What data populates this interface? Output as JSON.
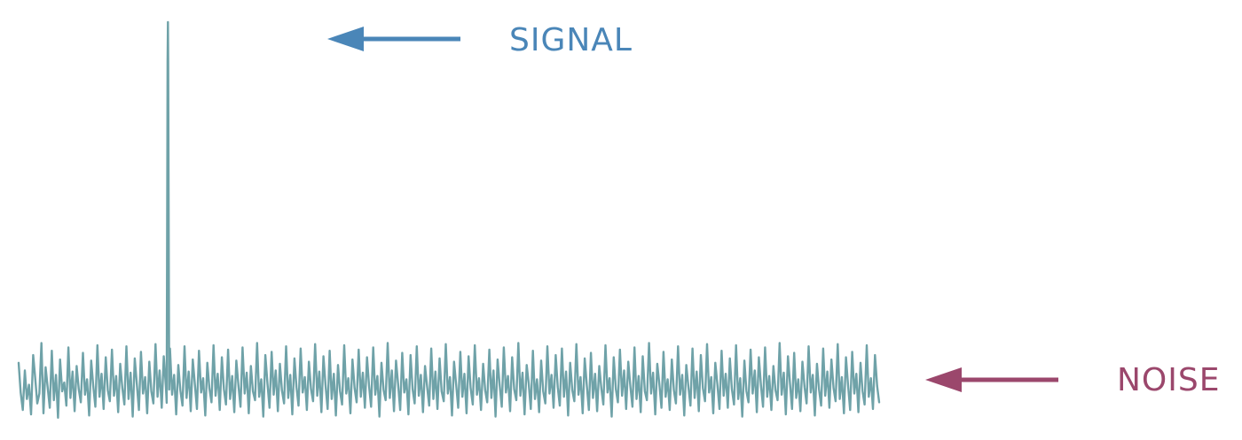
{
  "labels": {
    "signal": "SIGNAL",
    "noise": "NOISE"
  },
  "colors": {
    "waveform": "#6fa2a8",
    "signal": "#4a86b8",
    "noise": "#9b476c",
    "background": "#ffffff"
  },
  "waveform": {
    "noise_values": [
      0.55,
      0.28,
      0.12,
      0.48,
      0.22,
      0.35,
      0.08,
      0.62,
      0.41,
      0.18,
      0.27,
      0.73,
      0.09,
      0.51,
      0.33,
      0.14,
      0.66,
      0.21,
      0.44,
      0.05,
      0.58,
      0.29,
      0.37,
      0.16,
      0.69,
      0.23,
      0.47,
      0.11,
      0.52,
      0.31,
      0.19,
      0.64,
      0.26,
      0.4,
      0.07,
      0.57,
      0.34,
      0.15,
      0.71,
      0.24,
      0.45,
      0.13,
      0.6,
      0.3,
      0.2,
      0.67,
      0.25,
      0.43,
      0.1,
      0.54,
      0.32,
      0.17,
      0.7,
      0.22,
      0.46,
      0.06,
      0.59,
      0.36,
      0.12,
      0.65,
      0.27,
      0.42,
      0.09,
      0.56,
      0.29,
      0.18,
      0.72,
      0.24,
      0.48,
      0.14,
      0.61,
      0.33,
      0.2,
      0.68,
      0.26,
      0.44,
      0.08,
      0.53,
      0.3,
      0.16,
      0.7,
      0.23,
      0.47,
      0.11,
      0.58,
      0.35,
      0.13,
      0.66,
      0.28,
      0.41,
      0.07,
      0.55,
      0.32,
      0.19,
      0.71,
      0.25,
      0.45,
      0.12,
      0.6,
      0.31,
      0.17,
      0.67,
      0.22,
      0.43,
      0.1,
      0.57,
      0.34,
      0.15,
      0.69,
      0.27,
      0.46,
      0.09,
      0.52,
      0.29,
      0.21,
      0.73,
      0.24,
      0.4,
      0.06,
      0.62,
      0.36,
      0.14,
      0.65,
      0.26,
      0.48,
      0.11,
      0.54,
      0.3,
      0.18,
      0.7,
      0.23,
      0.44,
      0.08,
      0.59,
      0.33,
      0.16,
      0.68,
      0.28,
      0.42,
      0.12,
      0.56,
      0.31,
      0.2,
      0.72,
      0.25,
      0.47,
      0.1,
      0.61,
      0.35,
      0.13,
      0.66,
      0.22,
      0.45,
      0.07,
      0.53,
      0.29,
      0.17,
      0.71,
      0.27,
      0.41,
      0.09,
      0.58,
      0.32,
      0.19,
      0.67,
      0.24,
      0.46,
      0.14,
      0.6,
      0.34,
      0.15,
      0.69,
      0.26,
      0.43,
      0.06,
      0.55,
      0.3,
      0.21,
      0.73,
      0.23,
      0.48,
      0.11,
      0.57,
      0.36,
      0.12,
      0.64,
      0.28,
      0.4,
      0.08,
      0.62,
      0.31,
      0.18,
      0.7,
      0.25,
      0.44,
      0.1,
      0.52,
      0.33,
      0.16,
      0.68,
      0.22,
      0.47,
      0.13,
      0.59,
      0.29,
      0.2,
      0.72,
      0.27,
      0.42,
      0.07,
      0.56,
      0.35,
      0.14,
      0.65,
      0.24,
      0.45,
      0.09,
      0.61,
      0.32,
      0.17,
      0.71,
      0.26,
      0.41,
      0.12,
      0.54,
      0.3,
      0.19,
      0.67,
      0.23,
      0.48,
      0.06,
      0.58,
      0.34,
      0.15,
      0.69,
      0.28,
      0.43,
      0.11,
      0.6,
      0.31,
      0.21,
      0.73,
      0.25,
      0.46,
      0.08,
      0.53,
      0.36,
      0.13,
      0.66,
      0.22,
      0.4,
      0.1,
      0.57,
      0.29,
      0.18,
      0.7,
      0.27,
      0.44,
      0.14,
      0.62,
      0.33,
      0.16,
      0.68,
      0.24,
      0.47,
      0.07,
      0.55,
      0.3,
      0.2,
      0.72,
      0.26,
      0.42,
      0.09,
      0.59,
      0.35,
      0.12,
      0.64,
      0.23,
      0.45,
      0.11,
      0.52,
      0.32,
      0.17,
      0.71,
      0.28,
      0.41,
      0.06,
      0.6,
      0.31,
      0.19,
      0.67,
      0.25,
      0.48,
      0.13,
      0.56,
      0.34,
      0.15,
      0.69,
      0.22,
      0.43,
      0.1,
      0.61,
      0.29,
      0.21,
      0.73,
      0.27,
      0.46,
      0.08,
      0.54,
      0.36,
      0.14,
      0.65,
      0.24,
      0.4,
      0.12,
      0.58,
      0.3,
      0.18,
      0.7,
      0.26,
      0.44,
      0.07,
      0.53,
      0.33,
      0.16,
      0.68,
      0.23,
      0.47,
      0.11,
      0.62,
      0.32,
      0.2,
      0.72,
      0.28,
      0.42,
      0.09,
      0.55,
      0.35,
      0.13,
      0.66,
      0.25,
      0.45,
      0.14,
      0.59,
      0.31,
      0.17,
      0.71,
      0.22,
      0.41,
      0.06,
      0.57,
      0.29,
      0.19,
      0.67,
      0.27,
      0.48,
      0.1,
      0.6,
      0.34,
      0.15,
      0.69,
      0.24,
      0.43,
      0.12,
      0.52,
      0.3,
      0.21,
      0.73,
      0.26,
      0.46,
      0.08,
      0.61,
      0.36,
      0.13,
      0.64,
      0.23,
      0.4,
      0.11,
      0.56,
      0.33,
      0.18,
      0.7,
      0.28,
      0.44,
      0.07,
      0.54,
      0.31,
      0.16,
      0.68,
      0.25,
      0.47,
      0.14,
      0.58,
      0.32,
      0.2,
      0.72,
      0.22,
      0.42,
      0.09,
      0.6,
      0.35,
      0.12,
      0.65,
      0.27,
      0.45,
      0.1,
      0.55,
      0.29,
      0.17,
      0.71,
      0.24,
      0.41,
      0.13,
      0.62,
      0.34,
      0.19
    ],
    "peak_index": 72
  }
}
